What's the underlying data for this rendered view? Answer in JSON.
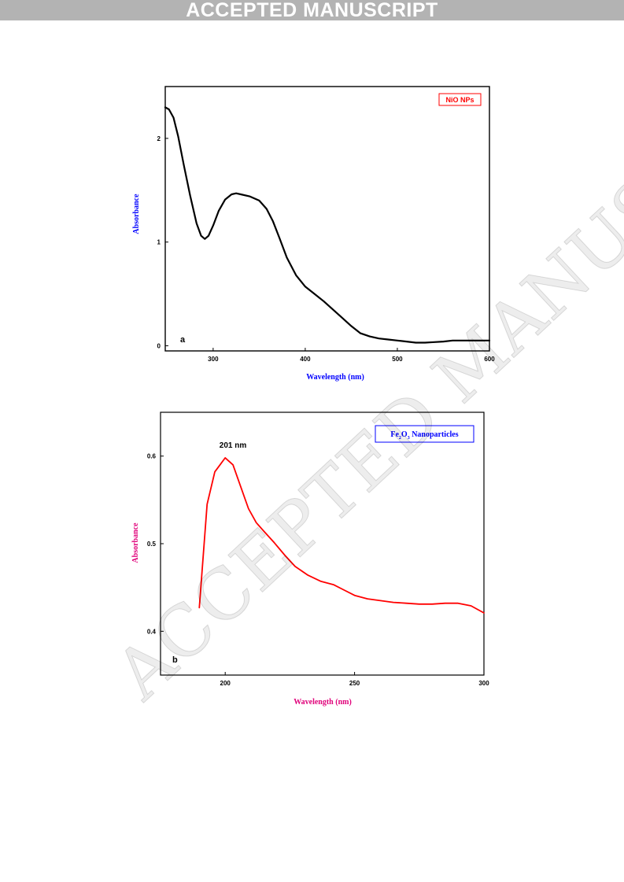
{
  "page": {
    "banner": "ACCEPTED MANUSCRIPT",
    "watermark": "ACCEPTED MANUSCRIPT"
  },
  "chart_data": [
    {
      "type": "line",
      "panel_label": "a",
      "legend": "NiO NPs",
      "legend_color": "#ff0000",
      "series_color": "#000000",
      "xlabel": "Wavelength (nm)",
      "ylabel": "Absorbance",
      "label_color": "#0000ff",
      "xlim": [
        248,
        600
      ],
      "ylim": [
        -0.05,
        2.5
      ],
      "xticks": [
        300,
        400,
        500,
        600
      ],
      "yticks": [
        0,
        1,
        2
      ],
      "grid": false,
      "series": [
        {
          "x": [
            248,
            252,
            257,
            262,
            268,
            275,
            282,
            287,
            291,
            295,
            300,
            306,
            313,
            320,
            325,
            330,
            340,
            350,
            358,
            365,
            372,
            380,
            390,
            400,
            410,
            420,
            430,
            440,
            450,
            460,
            470,
            480,
            490,
            500,
            510,
            520,
            530,
            540,
            550,
            560,
            570,
            580,
            590,
            600
          ],
          "y": [
            2.3,
            2.28,
            2.2,
            2.02,
            1.75,
            1.45,
            1.18,
            1.06,
            1.03,
            1.06,
            1.16,
            1.3,
            1.41,
            1.46,
            1.47,
            1.46,
            1.44,
            1.4,
            1.32,
            1.2,
            1.04,
            0.85,
            0.68,
            0.57,
            0.5,
            0.43,
            0.35,
            0.27,
            0.19,
            0.12,
            0.09,
            0.07,
            0.06,
            0.05,
            0.04,
            0.03,
            0.03,
            0.035,
            0.04,
            0.05,
            0.05,
            0.05,
            0.05,
            0.05
          ]
        }
      ]
    },
    {
      "type": "line",
      "panel_label": "b",
      "legend": "Fe2O3 Nanoparticles",
      "legend_color": "#0000ff",
      "series_color": "#ff0000",
      "annotation": "201 nm",
      "xlabel": "Wavelength (nm)",
      "ylabel": "Absorbance",
      "label_color": "#e0007a",
      "xlim": [
        175,
        300
      ],
      "ylim": [
        0.35,
        0.65
      ],
      "xticks": [
        200,
        250,
        300
      ],
      "yticks": [
        0.4,
        0.5,
        0.6
      ],
      "grid": false,
      "series": [
        {
          "x": [
            190,
            193,
            196,
            198,
            200,
            203,
            206,
            209,
            212,
            215,
            219,
            223,
            227,
            232,
            237,
            242,
            246,
            250,
            255,
            260,
            265,
            270,
            275,
            280,
            285,
            290,
            295,
            300
          ],
          "y": [
            0.427,
            0.545,
            0.582,
            0.59,
            0.598,
            0.59,
            0.565,
            0.54,
            0.524,
            0.514,
            0.501,
            0.487,
            0.474,
            0.464,
            0.457,
            0.453,
            0.447,
            0.441,
            0.437,
            0.435,
            0.433,
            0.432,
            0.431,
            0.431,
            0.432,
            0.432,
            0.429,
            0.421
          ]
        }
      ]
    }
  ]
}
